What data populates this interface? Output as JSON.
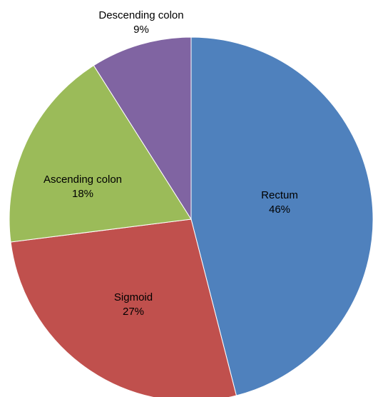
{
  "chart_data": {
    "type": "pie",
    "title": "",
    "start_angle_deg": 0,
    "direction": "clockwise",
    "slices": [
      {
        "label": "Rectum",
        "value": 46,
        "value_label": "46%",
        "color": "#4f81bd"
      },
      {
        "label": "Sigmoid",
        "value": 27,
        "value_label": "27%",
        "color": "#c0504d"
      },
      {
        "label": "Ascending colon",
        "value": 18,
        "value_label": "18%",
        "color": "#9bbb59"
      },
      {
        "label": "Descending colon",
        "value": 9,
        "value_label": "9%",
        "color": "#8064a2"
      }
    ],
    "legend": "none",
    "labels": "category and percentage on each slice"
  }
}
